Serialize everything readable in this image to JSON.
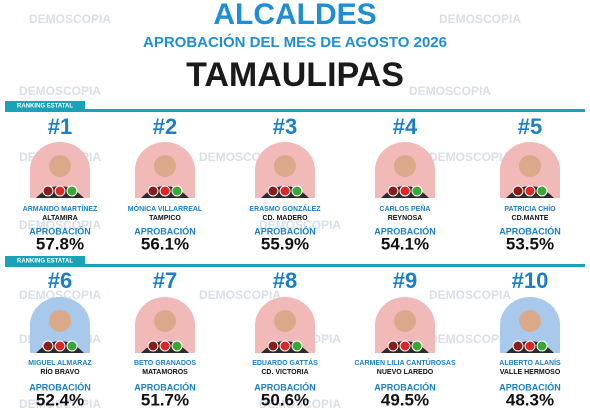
{
  "header": {
    "title": "ALCALDES",
    "subtitle": "APROBACIÓN DEL MES DE AGOSTO 2026",
    "state": "TAMAULIPAS"
  },
  "watermark": "DEMOSCOPIA",
  "sections": [
    {
      "label": "RANKING ESTATAL",
      "entries": [
        {
          "rank": "#1",
          "name": "ARMANDO MARTÍNEZ",
          "city": "ALTAMIRA",
          "label": "APROBACIÓN",
          "value": "57.8%"
        },
        {
          "rank": "#2",
          "name": "MÓNICA VILLARREAL",
          "city": "TAMPICO",
          "label": "APROBACIÓN",
          "value": "56.1%"
        },
        {
          "rank": "#3",
          "name": "ERASMO GONZÁLEZ",
          "city": "CD. MADERO",
          "label": "APROBACIÓN",
          "value": "55.9%"
        },
        {
          "rank": "#4",
          "name": "CARLOS PEÑA",
          "city": "REYNOSA",
          "label": "APROBACIÓN",
          "value": "54.1%"
        },
        {
          "rank": "#5",
          "name": "PATRICIA CHÍO",
          "city": "CD.MANTE",
          "label": "APROBACIÓN",
          "value": "53.5%"
        }
      ]
    },
    {
      "label": "RANKING ESTATAL",
      "entries": [
        {
          "rank": "#6",
          "name": "MIGUEL ALMARAZ",
          "city": "RÍO BRAVO",
          "label": "APROBACIÓN",
          "value": "52.4%"
        },
        {
          "rank": "#7",
          "name": "BETO GRANADOS",
          "city": "MATAMOROS",
          "label": "APROBACIÓN",
          "value": "51.7%"
        },
        {
          "rank": "#8",
          "name": "EDUARDO GATTÁS",
          "city": "CD. VICTORIA",
          "label": "APROBACIÓN",
          "value": "50.6%"
        },
        {
          "rank": "#9",
          "name": "CARMEN LILIA CANTÚROSAS",
          "city": "NUEVO LAREDO",
          "label": "APROBACIÓN",
          "value": "49.5%"
        },
        {
          "rank": "#10",
          "name": "ALBERTO ALANÍS",
          "city": "VALLE HERMOSO",
          "label": "APROBACIÓN",
          "value": "48.3%"
        }
      ]
    }
  ]
}
